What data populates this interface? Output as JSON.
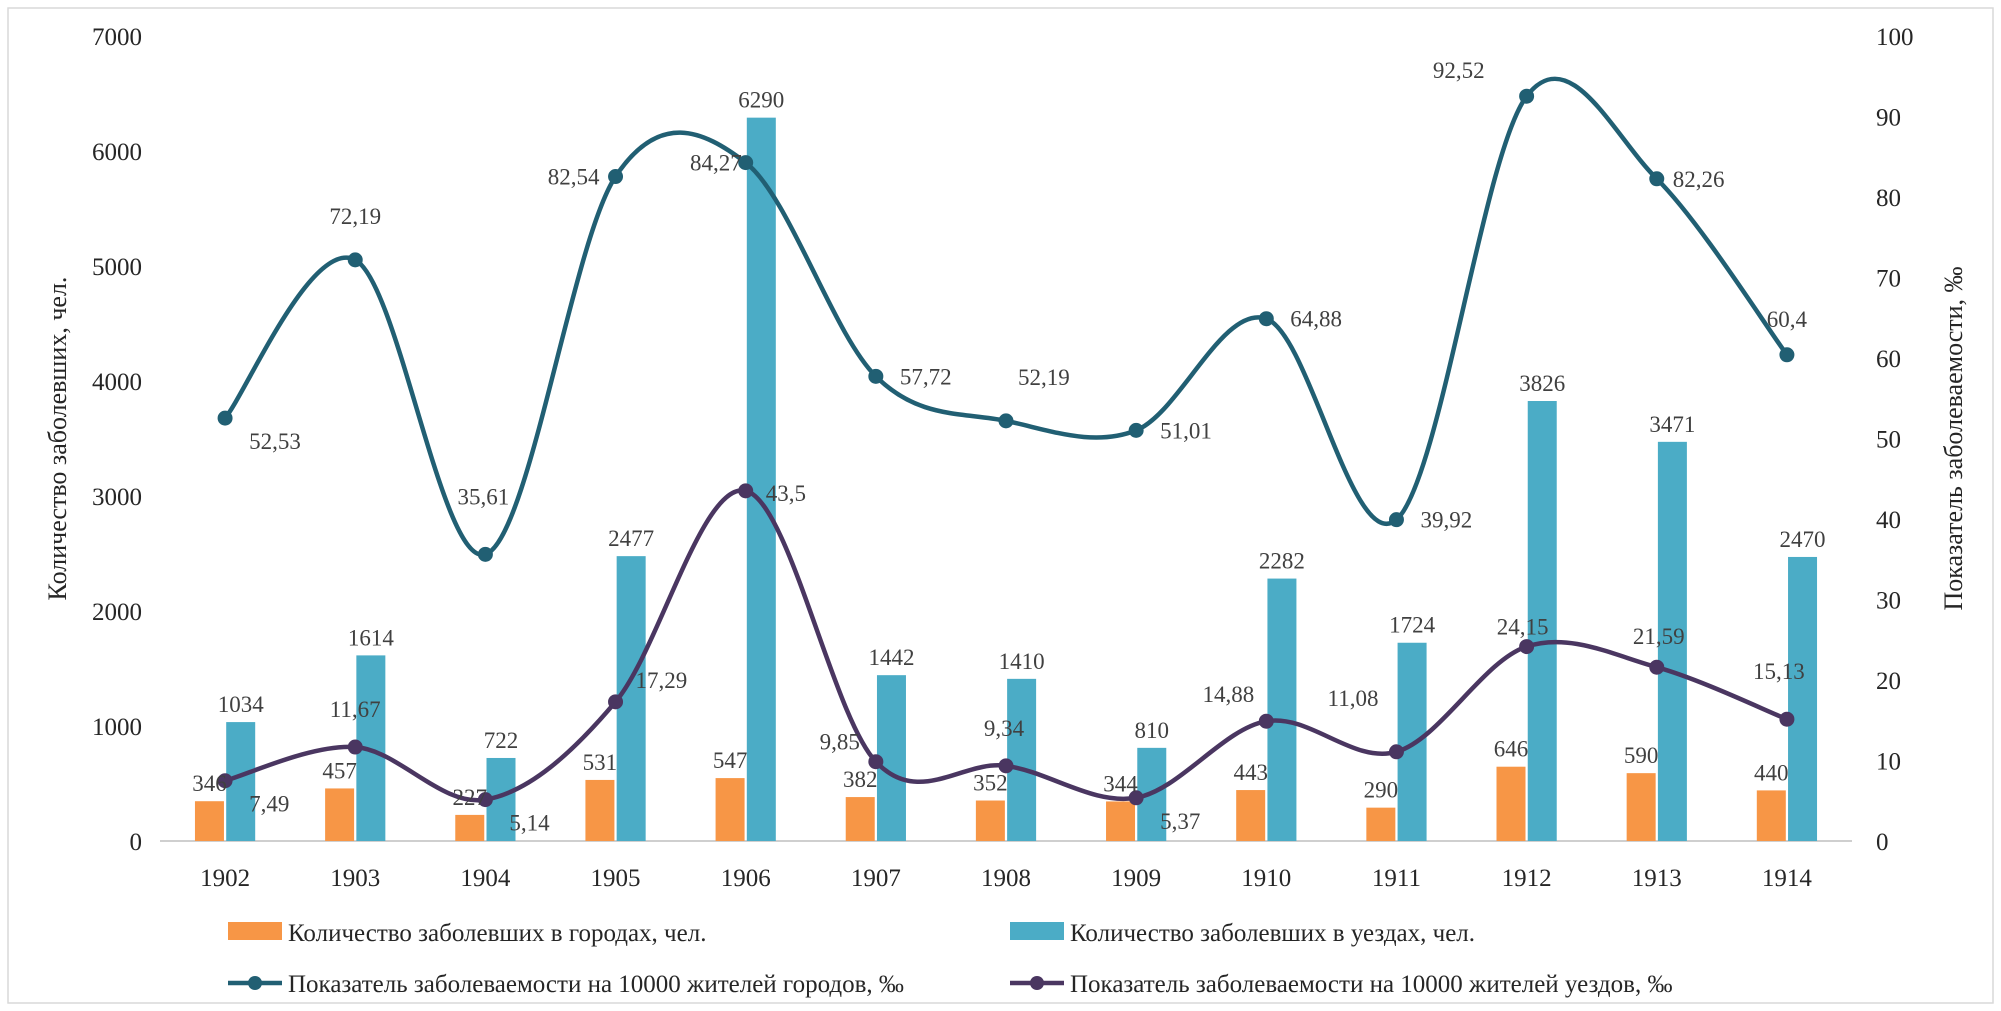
{
  "chart_data": {
    "type": "bar+line",
    "categories": [
      "1902",
      "1903",
      "1904",
      "1905",
      "1906",
      "1907",
      "1908",
      "1909",
      "1910",
      "1911",
      "1912",
      "1913",
      "1914"
    ],
    "bar_series": [
      {
        "name": "Количество заболевших в городах, чел.",
        "color": "#f79646",
        "values": [
          346,
          457,
          227,
          531,
          547,
          382,
          352,
          344,
          443,
          290,
          646,
          590,
          440
        ],
        "labels": [
          "346",
          "457",
          "227",
          "531",
          "547",
          "382",
          "352",
          "344",
          "443",
          "290",
          "646",
          "590",
          "440"
        ]
      },
      {
        "name": "Количество заболевших в уездах, чел.",
        "color": "#4bacc6",
        "values": [
          1034,
          1614,
          722,
          2477,
          6290,
          1442,
          1410,
          810,
          2282,
          1724,
          3826,
          3471,
          2470
        ],
        "labels": [
          "1034",
          "1614",
          "722",
          "2477",
          "6290",
          "1442",
          "1410",
          "810",
          "2282",
          "1724",
          "3826",
          "3471",
          "2470"
        ]
      }
    ],
    "line_series": [
      {
        "name": "Показатель заболеваемости на 10000 жителей городов, ‰",
        "color": "#215f73",
        "values": [
          52.53,
          72.19,
          35.61,
          82.54,
          84.27,
          57.72,
          52.19,
          51.01,
          64.88,
          39.92,
          92.52,
          82.26,
          60.4
        ],
        "labels": [
          "52,53",
          "72,19",
          "35,61",
          "82,54",
          "84,27",
          "57,72",
          "52,19",
          "51,01",
          "64,88",
          "39,92",
          "92,52",
          "82,26",
          "60,4"
        ]
      },
      {
        "name": "Показатель заболеваемости на 10000 жителей уездов, ‰",
        "color": "#4a3661",
        "values": [
          7.49,
          11.67,
          5.14,
          17.29,
          43.5,
          9.85,
          9.34,
          5.37,
          14.88,
          11.08,
          24.15,
          21.59,
          15.13
        ],
        "labels": [
          "7,49",
          "11,67",
          "5,14",
          "17,29",
          "43,5",
          "9,85",
          "9,34",
          "5,37",
          "14,88",
          "11,08",
          "24,15",
          "21,59",
          "15,13"
        ]
      }
    ],
    "ylabel_left": "Количество заболевших, чел.",
    "ylabel_right": "Показатель заболеваемости, ‰",
    "ylim_left": [
      0,
      7000
    ],
    "ylim_right": [
      0,
      100
    ],
    "yticks_left": [
      "0",
      "1000",
      "2000",
      "3000",
      "4000",
      "5000",
      "6000",
      "7000"
    ],
    "yticks_right": [
      "0",
      "10",
      "20",
      "30",
      "40",
      "50",
      "60",
      "70",
      "80",
      "90",
      "100"
    ],
    "grid": false,
    "legend_position": "bottom"
  }
}
